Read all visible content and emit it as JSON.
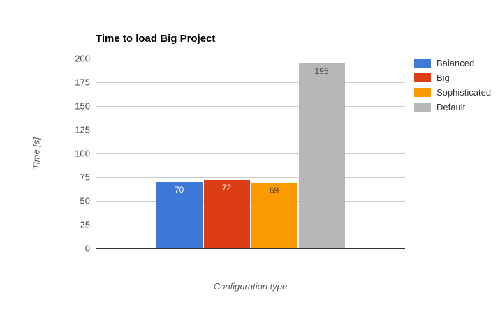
{
  "chart_data": {
    "type": "bar",
    "title": "Time to load Big Project",
    "xlabel": "Configuration type",
    "ylabel": "Time [s]",
    "ylim": [
      0,
      200
    ],
    "yticks": [
      0,
      25,
      50,
      75,
      100,
      125,
      150,
      175,
      200
    ],
    "grid": true,
    "legend_position": "right",
    "series": [
      {
        "name": "Balanced",
        "value": 70,
        "color": "#3e78d8",
        "label_color": "#ffffff"
      },
      {
        "name": "Big",
        "value": 72,
        "color": "#dc3d15",
        "label_color": "#ffffff"
      },
      {
        "name": "Sophisticated",
        "value": 69,
        "color": "#fa9a00",
        "label_color": "#404040"
      },
      {
        "name": "Default",
        "value": 195,
        "color": "#b7b7b7",
        "label_color": "#404040"
      }
    ]
  },
  "colors": {
    "gridline": "#cccccc",
    "axis_line": "#333333",
    "tick_label": "#444444",
    "axis_title": "#555555",
    "background": "#ffffff"
  }
}
